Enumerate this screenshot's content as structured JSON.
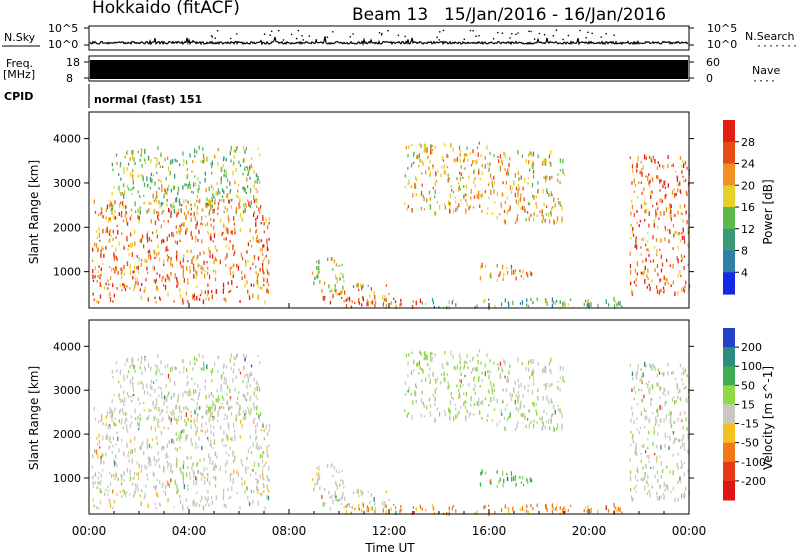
{
  "chart_data": {
    "type": "heatmap",
    "title": {
      "station": "Hokkaido (fitACF)",
      "beam": "Beam 13",
      "dates": "15/Jan/2016 - 16/Jan/2016"
    },
    "status_panels": {
      "nsky_label": "N.Sky",
      "nsearch_label": "N.Search",
      "nsky_ticks": [
        "10^5",
        "10^0"
      ],
      "nsearch_ticks": [
        "10^5",
        "10^0"
      ],
      "freq_label_line1": "Freq.",
      "freq_label_line2": "[MHz]",
      "freq_ticks": [
        "18",
        "8"
      ],
      "nave_label": "Nave",
      "nave_ticks": [
        "60",
        "0"
      ],
      "cpid_label": "CPID",
      "cpid_text": "normal (fast) 151"
    },
    "x_axis": {
      "label": "Time UT",
      "ticks": [
        "00:00",
        "04:00",
        "08:00",
        "12:00",
        "16:00",
        "20:00",
        "00:00"
      ],
      "range_hours": [
        0,
        24
      ]
    },
    "y_axis": {
      "label": "Slant Range [km]",
      "ticks": [
        1000,
        2000,
        3000,
        4000
      ],
      "range_km": [
        180,
        4600
      ]
    },
    "power_panel": {
      "colorbar_label": "Power [dB]",
      "colorbar_ticks": [
        "4",
        "8",
        "12",
        "16",
        "20",
        "24",
        "28"
      ],
      "colorbar_colors": [
        "#1428e6",
        "#2d7fa8",
        "#3a9a78",
        "#5cb848",
        "#e6d02a",
        "#f09020",
        "#e84a14",
        "#e01e14"
      ]
    },
    "velocity_panel": {
      "colorbar_label": "Velocity [m s^-1]",
      "colorbar_ticks": [
        "200",
        "100",
        "50",
        "15",
        "-15",
        "-50",
        "-100",
        "-200"
      ],
      "colorbar_colors": [
        "#2440c8",
        "#2f8a80",
        "#3fae52",
        "#8fd846",
        "#c8c8c0",
        "#f5c020",
        "#f07818",
        "#e63a14",
        "#e01414"
      ]
    },
    "echo_regions": [
      {
        "t_start": 0.1,
        "t_end": 7.2,
        "r_low": 300,
        "r_high": 2600,
        "power": 24,
        "velocity": 0
      },
      {
        "t_start": 0.8,
        "t_end": 6.8,
        "r_low": 2300,
        "r_high": 3800,
        "power": 16,
        "velocity": 5
      },
      {
        "t_start": 8.9,
        "t_end": 10.2,
        "r_low": 550,
        "r_high": 1300,
        "power": 16,
        "velocity": -5
      },
      {
        "t_start": 9.3,
        "t_end": 12.0,
        "r_low": 300,
        "r_high": 700,
        "power": 22,
        "velocity": 0
      },
      {
        "t_start": 10.2,
        "t_end": 13.3,
        "r_low": 180,
        "r_high": 420,
        "power": 26,
        "velocity": -60
      },
      {
        "t_start": 13.3,
        "t_end": 19.0,
        "r_low": 180,
        "r_high": 380,
        "power": 12,
        "velocity": -60
      },
      {
        "t_start": 15.5,
        "t_end": 17.8,
        "r_low": 800,
        "r_high": 1150,
        "power": 22,
        "velocity": 60
      },
      {
        "t_start": 12.6,
        "t_end": 16.2,
        "r_low": 2300,
        "r_high": 3900,
        "power": 20,
        "velocity": 20
      },
      {
        "t_start": 16.3,
        "t_end": 19.0,
        "r_low": 2100,
        "r_high": 3700,
        "power": 20,
        "velocity": 10
      },
      {
        "t_start": 18.8,
        "t_end": 21.3,
        "r_low": 180,
        "r_high": 400,
        "power": 14,
        "velocity": -60
      },
      {
        "t_start": 21.6,
        "t_end": 24.0,
        "r_low": 500,
        "r_high": 3600,
        "power": 24,
        "velocity": 5
      }
    ]
  }
}
